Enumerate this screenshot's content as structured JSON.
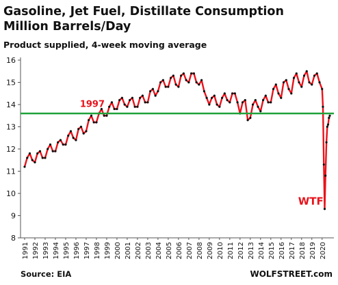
{
  "title_line1": "Gasoline, Jet Fuel, Distillate Consumption",
  "title_line2": "Million Barrels/Day",
  "subtitle": "Product supplied, 4-week moving average",
  "source": "Source: EIA",
  "brand": "WOLFSTREET.com",
  "chart_data": {
    "type": "line",
    "ylim": [
      8,
      16
    ],
    "y_ticks": [
      "8",
      "9",
      "10",
      "11",
      "12",
      "13",
      "14",
      "15",
      "16"
    ],
    "x_ticks": [
      "1991",
      "1992",
      "1993",
      "1994",
      "1995",
      "1996",
      "1997",
      "1998",
      "1999",
      "2000",
      "2001",
      "2002",
      "2003",
      "2004",
      "2005",
      "2006",
      "2007",
      "2008",
      "2009",
      "2010",
      "2011",
      "2012",
      "2013",
      "2014",
      "2015",
      "2016",
      "2017",
      "2018",
      "2019",
      "2020"
    ],
    "xlim": [
      1991,
      2020.75
    ],
    "series": [
      {
        "color": "#e8131b",
        "marker_color": "#111111",
        "x": [
          1991.0,
          1991.25,
          1991.5,
          1991.75,
          1992.0,
          1992.25,
          1992.5,
          1992.75,
          1993.0,
          1993.25,
          1993.5,
          1993.75,
          1994.0,
          1994.25,
          1994.5,
          1994.75,
          1995.0,
          1995.25,
          1995.5,
          1995.75,
          1996.0,
          1996.25,
          1996.5,
          1996.75,
          1997.0,
          1997.25,
          1997.5,
          1997.75,
          1998.0,
          1998.25,
          1998.5,
          1998.75,
          1999.0,
          1999.25,
          1999.5,
          1999.75,
          2000.0,
          2000.25,
          2000.5,
          2000.75,
          2001.0,
          2001.25,
          2001.5,
          2001.75,
          2002.0,
          2002.25,
          2002.5,
          2002.75,
          2003.0,
          2003.25,
          2003.5,
          2003.75,
          2004.0,
          2004.25,
          2004.5,
          2004.75,
          2005.0,
          2005.25,
          2005.5,
          2005.75,
          2006.0,
          2006.25,
          2006.5,
          2006.75,
          2007.0,
          2007.25,
          2007.5,
          2007.75,
          2008.0,
          2008.25,
          2008.5,
          2008.75,
          2009.0,
          2009.25,
          2009.5,
          2009.75,
          2010.0,
          2010.25,
          2010.5,
          2010.75,
          2011.0,
          2011.25,
          2011.5,
          2011.75,
          2012.0,
          2012.25,
          2012.5,
          2012.75,
          2013.0,
          2013.25,
          2013.5,
          2013.75,
          2014.0,
          2014.25,
          2014.5,
          2014.75,
          2015.0,
          2015.25,
          2015.5,
          2015.75,
          2016.0,
          2016.25,
          2016.5,
          2016.75,
          2017.0,
          2017.25,
          2017.5,
          2017.75,
          2018.0,
          2018.25,
          2018.5,
          2018.75,
          2019.0,
          2019.25,
          2019.5,
          2019.75,
          2020.0,
          2020.08,
          2020.17,
          2020.25,
          2020.33,
          2020.42,
          2020.5,
          2020.58,
          2020.67,
          2020.75
        ],
        "values": [
          11.2,
          11.6,
          11.8,
          11.5,
          11.4,
          11.8,
          11.9,
          11.6,
          11.6,
          12.0,
          12.2,
          11.9,
          11.9,
          12.3,
          12.4,
          12.2,
          12.2,
          12.6,
          12.8,
          12.5,
          12.4,
          12.9,
          13.0,
          12.7,
          12.8,
          13.3,
          13.5,
          13.2,
          13.2,
          13.6,
          13.8,
          13.5,
          13.5,
          13.9,
          14.1,
          13.8,
          13.8,
          14.2,
          14.3,
          14.0,
          13.9,
          14.2,
          14.3,
          13.9,
          13.9,
          14.3,
          14.4,
          14.1,
          14.1,
          14.6,
          14.7,
          14.4,
          14.6,
          15.0,
          15.1,
          14.8,
          14.8,
          15.2,
          15.3,
          14.9,
          14.8,
          15.3,
          15.4,
          15.1,
          15.0,
          15.4,
          15.4,
          15.0,
          14.9,
          15.1,
          14.6,
          14.3,
          14.0,
          14.3,
          14.4,
          14.0,
          13.9,
          14.3,
          14.5,
          14.2,
          14.1,
          14.5,
          14.5,
          14.1,
          13.6,
          14.1,
          14.2,
          13.3,
          13.4,
          14.0,
          14.2,
          13.9,
          13.7,
          14.2,
          14.4,
          14.1,
          14.1,
          14.7,
          14.9,
          14.5,
          14.3,
          15.0,
          15.1,
          14.7,
          14.5,
          15.2,
          15.4,
          15.0,
          14.8,
          15.3,
          15.5,
          15.0,
          14.9,
          15.3,
          15.4,
          15.0,
          14.7,
          13.9,
          11.3,
          9.3,
          10.8,
          12.3,
          13.0,
          13.1,
          13.4,
          13.5
        ]
      }
    ],
    "reference_line": {
      "value": 13.6,
      "color": "#1fa23a"
    },
    "annotations": [
      {
        "text": "1997",
        "x": 1997.6,
        "y": 13.9,
        "color": "#e8131b"
      },
      {
        "text": "WTF",
        "x": 2018.9,
        "y": 9.5,
        "color": "#e8131b"
      }
    ],
    "grid": false,
    "legend": "none"
  }
}
